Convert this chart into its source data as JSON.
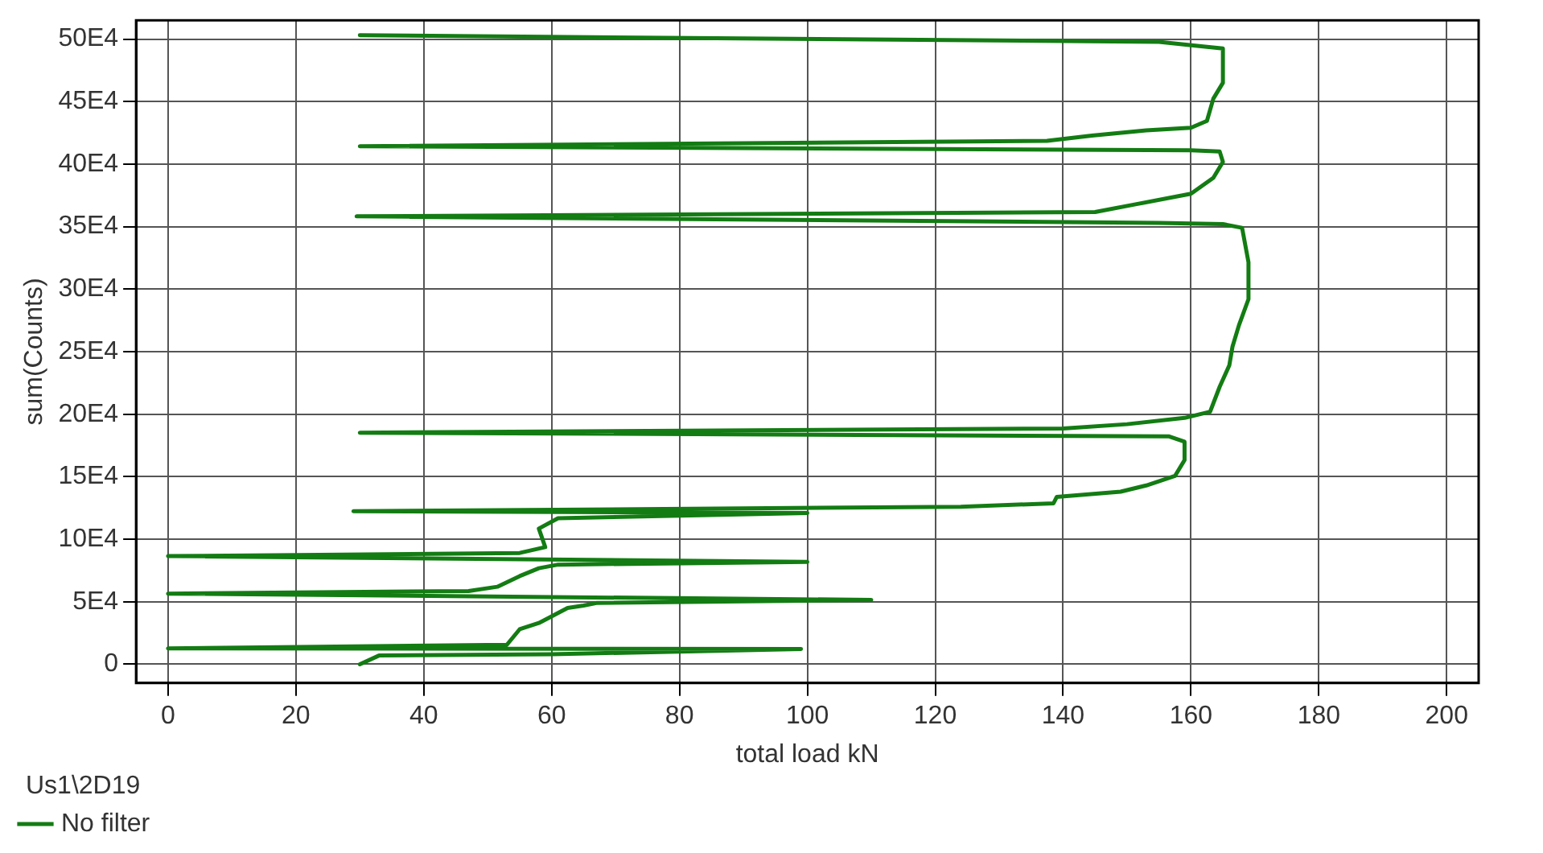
{
  "chart_data": {
    "type": "line",
    "xlabel": "total load kN",
    "ylabel": "sum(Counts)",
    "legend_title": "Us1\\2D19",
    "legend": "bottom left",
    "grid": true,
    "marker": "none",
    "line_style": "solid",
    "xlim": [
      -5,
      205
    ],
    "xticks": [
      0,
      20,
      40,
      60,
      80,
      100,
      120,
      140,
      160,
      180,
      200
    ],
    "ylim": [
      -15000,
      515000
    ],
    "yticks": [
      0,
      {
        "value": 50000,
        "label": "5E4"
      },
      {
        "value": 100000,
        "label": "10E4"
      },
      {
        "value": 150000,
        "label": "15E4"
      },
      {
        "value": 200000,
        "label": "20E4"
      },
      {
        "value": 250000,
        "label": "25E4"
      },
      {
        "value": 300000,
        "label": "30E4"
      },
      {
        "value": 350000,
        "label": "35E4"
      },
      {
        "value": 400000,
        "label": "40E4"
      },
      {
        "value": 450000,
        "label": "45E4"
      },
      {
        "value": 500000,
        "label": "50E4"
      }
    ],
    "series": [
      {
        "name": "No filter",
        "color": "#137c13",
        "x": [
          30,
          33,
          60,
          99,
          0,
          53,
          55,
          58,
          61,
          62.5,
          65,
          67,
          110,
          0,
          47,
          51.5,
          55,
          58,
          61,
          100,
          0,
          55,
          59,
          58,
          61,
          100,
          29,
          124,
          138.5,
          139,
          149,
          153,
          157.5,
          159,
          159,
          156.5,
          30,
          140,
          150,
          159,
          163,
          164.5,
          166,
          166.5,
          167.5,
          169,
          169,
          168,
          165,
          155,
          29.5,
          145,
          151.5,
          160,
          163.5,
          165,
          164.5,
          160,
          30,
          137.5,
          144.5,
          153,
          160,
          162.5,
          163.5,
          165,
          165,
          161,
          155,
          30
        ],
        "values": [
          0,
          7000,
          8000,
          12300,
          12700,
          15600,
          28000,
          33000,
          41000,
          45000,
          47000,
          49000,
          51500,
          56500,
          58600,
          62000,
          70500,
          76800,
          79700,
          81900,
          86500,
          89000,
          93700,
          108500,
          116800,
          121000,
          122400,
          126000,
          128700,
          133800,
          138000,
          143000,
          150600,
          163300,
          178000,
          182300,
          185200,
          188600,
          192000,
          197000,
          202000,
          222000,
          239000,
          254000,
          271000,
          292000,
          321500,
          349000,
          352000,
          353000,
          358200,
          361600,
          368000,
          376300,
          389000,
          401700,
          410000,
          411000,
          414300,
          418600,
          422800,
          427000,
          429100,
          434500,
          452300,
          465000,
          492400,
          494500,
          497800,
          503000
        ]
      }
    ]
  }
}
